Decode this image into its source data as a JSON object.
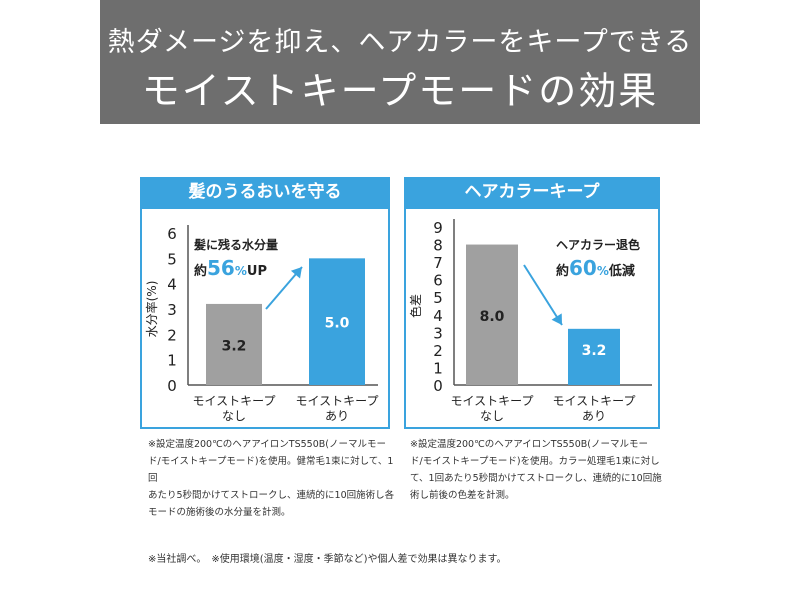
{
  "header": {
    "line1": "熱ダメージを抑え、ヘアカラーをキープできる",
    "line2": "モイストキープモードの効果"
  },
  "chart_data": [
    {
      "type": "bar",
      "title": "髪のうるおいを守る",
      "ylabel": "水分率(%)",
      "xlabel": "",
      "categories": [
        [
          "モイストキープ",
          "なし"
        ],
        [
          "モイストキープ",
          "あり"
        ]
      ],
      "values": [
        3.2,
        5.0
      ],
      "value_labels": [
        "3.2",
        "5.0"
      ],
      "bar_colors": [
        "#a0a0a0",
        "#3aa3de"
      ],
      "ylim": [
        0,
        6
      ],
      "yticks": [
        0,
        1,
        2,
        3,
        4,
        5,
        6
      ],
      "annotation": {
        "line1": "髪に残る水分量",
        "prefix": "約",
        "number": "56",
        "unit": "%",
        "suffix": "UP"
      }
    },
    {
      "type": "bar",
      "title": "ヘアカラーキープ",
      "ylabel": "色差",
      "xlabel": "",
      "categories": [
        [
          "モイストキープ",
          "なし"
        ],
        [
          "モイストキープ",
          "あり"
        ]
      ],
      "values": [
        8.0,
        3.2
      ],
      "value_labels": [
        "8.0",
        "3.2"
      ],
      "bar_colors": [
        "#a0a0a0",
        "#3aa3de"
      ],
      "ylim": [
        0,
        9
      ],
      "yticks": [
        0,
        1,
        2,
        3,
        4,
        5,
        6,
        7,
        8,
        9
      ],
      "annotation": {
        "line1": "ヘアカラー退色",
        "prefix": "約",
        "number": "60",
        "unit": "%",
        "suffix": "低減"
      }
    }
  ],
  "notes": {
    "left": "※設定温度200℃のヘアアイロンTS550B(ノーマルモー\nド/モイストキープモード)を使用。健常毛1束に対して、1回\nあたり5秒間かけてストロークし、連続的に10回施術し各\nモードの施術後の水分量を計測。",
    "right": "※設定温度200℃のヘアアイロンTS550B(ノーマルモー\nド/モイストキープモード)を使用。カラー処理毛1束に対し\nて、1回あたり5秒間かけてストロークし、連続的に10回施\n術し前後の色差を計測。"
  },
  "footer": "※当社調べ。　※使用環境(温度・湿度・季節など)や個人差で効果は異なります。"
}
